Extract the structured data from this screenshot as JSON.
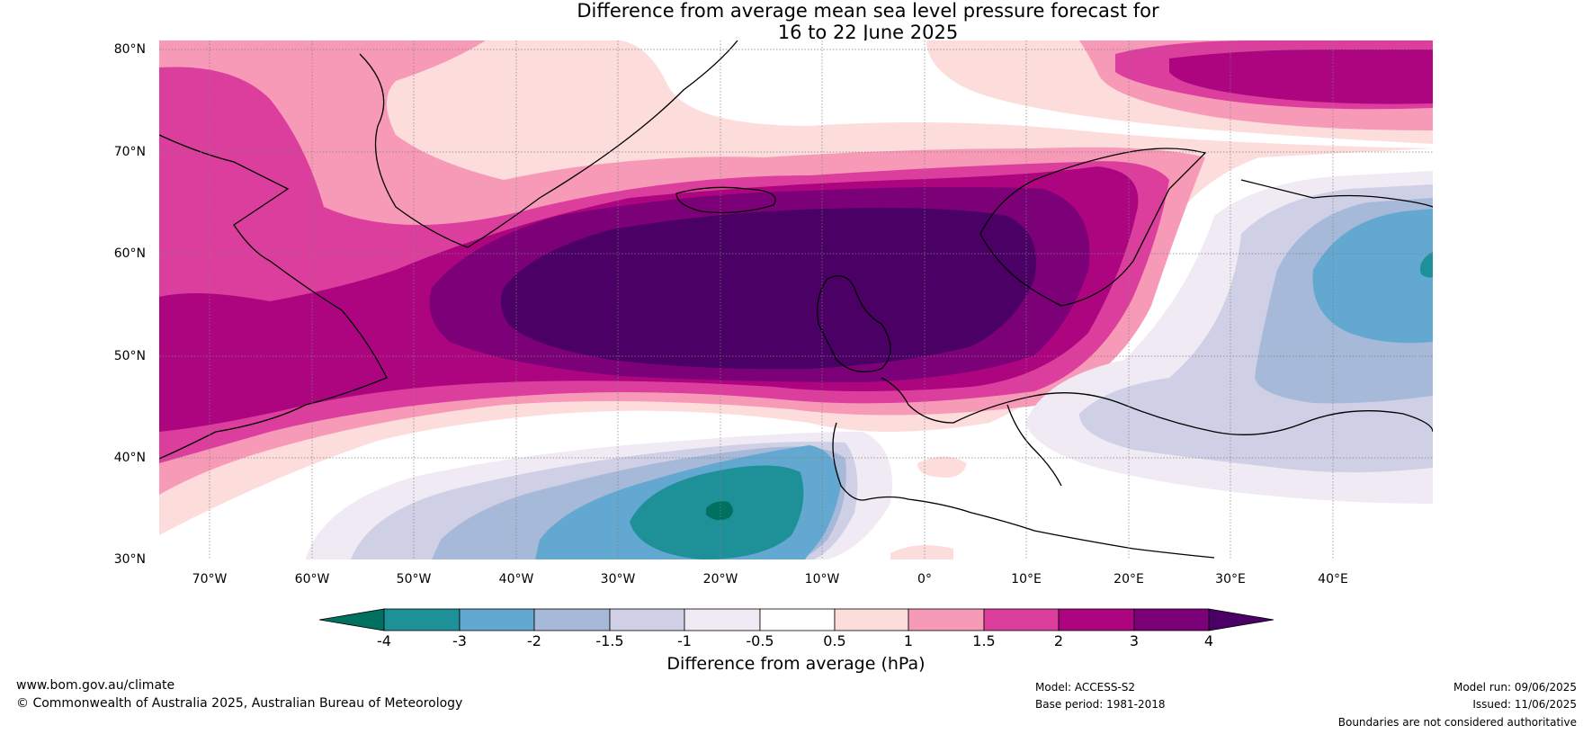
{
  "title": {
    "line1": "Difference from average mean sea level pressure forecast for",
    "line2": "16 to 22 June 2025"
  },
  "map": {
    "latitude_labels": [
      "80°N",
      "70°N",
      "60°N",
      "50°N",
      "40°N",
      "30°N"
    ],
    "longitude_labels": [
      "70°W",
      "60°W",
      "50°W",
      "40°W",
      "30°W",
      "20°W",
      "10°W",
      "0°",
      "10°E",
      "20°E",
      "30°E",
      "40°E"
    ]
  },
  "colorbar": {
    "ticks": [
      "-4",
      "-3",
      "-2",
      "-1.5",
      "-1",
      "-0.5",
      "0.5",
      "1",
      "1.5",
      "2",
      "3",
      "4"
    ],
    "colors": [
      "#007060",
      "#1e9198",
      "#62a8d0",
      "#a6b9d9",
      "#cfd0e5",
      "#efeaf4",
      "#ffffff",
      "#fddcdc",
      "#f79ab8",
      "#dc3e9d",
      "#ad0580",
      "#7c0077",
      "#4a0065"
    ],
    "title": "Difference from average (hPa)"
  },
  "footer": {
    "website": "www.bom.gov.au/climate",
    "copyright": "© Commonwealth of Australia 2025, Australian Bureau of Meteorology",
    "model": "Model: ACCESS-S2",
    "base_period": "Base period: 1981-2018",
    "model_run": "Model run: 09/06/2025",
    "issued": "Issued: 11/06/2025",
    "disclaimer": "Boundaries are not considered authoritative"
  }
}
